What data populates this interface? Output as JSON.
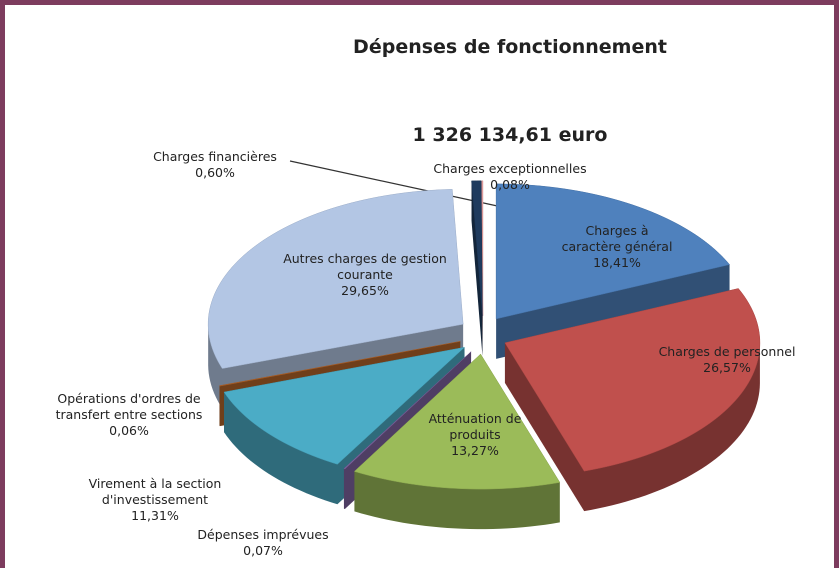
{
  "chart_data": {
    "type": "pie",
    "title": "Dépenses de fonctionnement",
    "subtitle": "1 326 134,61 euro",
    "categories": [
      "Charges à caractère général",
      "Charges de personnel",
      "Atténuation de produits",
      "Dépenses imprévues",
      "Virement à la section d'investissement",
      "Opérations d'ordres de transfert entre sections",
      "Autres charges de gestion courante",
      "Charges financières",
      "Charges exceptionnelles"
    ],
    "values": [
      18.41,
      26.57,
      13.27,
      0.07,
      11.31,
      0.06,
      29.65,
      0.6,
      0.08
    ],
    "value_labels": [
      "18,41%",
      "26,57%",
      "13,27%",
      "0,07%",
      "11,31%",
      "0,06%",
      "29,65%",
      "0,60%",
      "0,08%"
    ],
    "colors": [
      "#4f81bd",
      "#c0504d",
      "#9bbb59",
      "#8064a2",
      "#4bacc6",
      "#b5652a",
      "#b3c6e4",
      "#1f3b5e",
      "#e8a0a0"
    ]
  }
}
